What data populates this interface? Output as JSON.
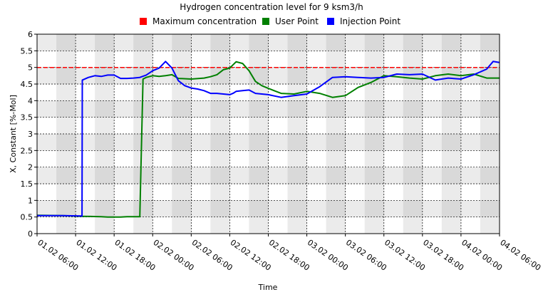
{
  "chart_data": {
    "type": "line",
    "title": "Hydrogen concentration level for 9 ksm3/h",
    "xlabel": "Time",
    "ylabel": "X, Constant [%-Mol]",
    "ylim": [
      0,
      6
    ],
    "yticks": [
      "0",
      "0.5",
      "1",
      "1.5",
      "2",
      "2.5",
      "3",
      "3.5",
      "4",
      "4.5",
      "5",
      "5.5",
      "6"
    ],
    "xlim_hours": [
      0,
      72
    ],
    "xticks": [
      "01.02 06:00",
      "01.02 12:00",
      "01.02 18:00",
      "02.02 00:00",
      "02.02 06:00",
      "02.02 12:00",
      "02.02 18:00",
      "03.02 00:00",
      "03.02 06:00",
      "03.02 12:00",
      "03.02 18:00",
      "04.02 00:00",
      "04.02 06:00"
    ],
    "grid": true,
    "legend_position": "top",
    "series": [
      {
        "name": "Maximum concentration",
        "color": "#ff0000",
        "style": "dashed",
        "x": [
          0,
          72
        ],
        "y": [
          5.0,
          5.0
        ]
      },
      {
        "name": "User Point",
        "color": "#008000",
        "style": "solid",
        "x": [
          0,
          4,
          7,
          7.05,
          10,
          11,
          12,
          13,
          14,
          15,
          16,
          16.5,
          17,
          18,
          19,
          20,
          21,
          22,
          24,
          26,
          27,
          28,
          29,
          30,
          31,
          32,
          33,
          34,
          35,
          36,
          38,
          40,
          42,
          44,
          46,
          48,
          50,
          52,
          54,
          56,
          58,
          60,
          62,
          64,
          66,
          68,
          70,
          72
        ],
        "y": [
          0.55,
          0.54,
          0.52,
          0.52,
          0.51,
          0.5,
          0.5,
          0.5,
          0.51,
          0.51,
          0.51,
          4.65,
          4.7,
          4.75,
          4.73,
          4.75,
          4.78,
          4.67,
          4.65,
          4.68,
          4.72,
          4.78,
          4.93,
          4.98,
          5.17,
          5.12,
          4.9,
          4.58,
          4.45,
          4.37,
          4.22,
          4.2,
          4.28,
          4.22,
          4.1,
          4.15,
          4.4,
          4.55,
          4.75,
          4.72,
          4.68,
          4.65,
          4.75,
          4.8,
          4.75,
          4.8,
          4.68,
          4.68
        ]
      },
      {
        "name": "Injection Point",
        "color": "#0000ff",
        "style": "solid",
        "x": [
          0,
          4,
          7,
          7.05,
          8,
          9,
          10,
          11,
          12,
          13,
          14,
          15,
          16,
          17,
          18,
          19,
          20,
          21,
          22,
          23,
          24,
          25,
          26,
          27,
          28,
          29,
          30,
          30.5,
          31,
          32,
          33,
          34,
          36,
          38,
          40,
          42,
          44,
          46,
          48,
          50,
          52,
          54,
          56,
          58,
          60,
          62,
          64,
          66,
          68,
          70,
          71,
          72
        ],
        "y": [
          0.54,
          0.54,
          0.53,
          4.62,
          4.7,
          4.75,
          4.73,
          4.77,
          4.77,
          4.67,
          4.67,
          4.68,
          4.7,
          4.77,
          4.9,
          4.98,
          5.18,
          4.98,
          4.6,
          4.45,
          4.38,
          4.35,
          4.3,
          4.22,
          4.22,
          4.2,
          4.18,
          4.22,
          4.28,
          4.3,
          4.32,
          4.22,
          4.18,
          4.1,
          4.15,
          4.2,
          4.42,
          4.7,
          4.72,
          4.7,
          4.68,
          4.7,
          4.8,
          4.78,
          4.8,
          4.62,
          4.68,
          4.65,
          4.78,
          4.95,
          5.18,
          5.15
        ]
      }
    ]
  }
}
